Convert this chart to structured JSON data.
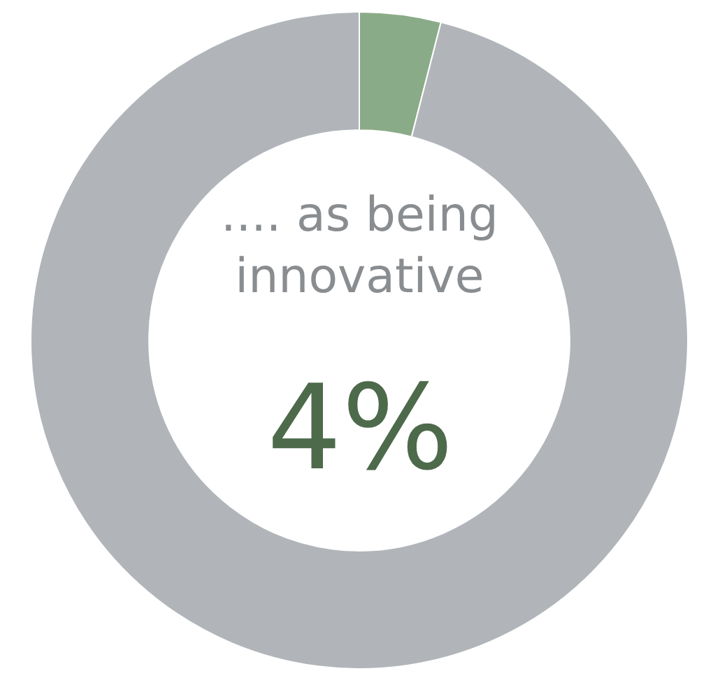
{
  "chart_data": {
    "type": "donut",
    "categories": [
      null,
      null
    ],
    "values": [
      4,
      96
    ],
    "colors": [
      "#8aab87",
      "#b1b5b9"
    ],
    "annotations": [
      ".... as being\ninnovative",
      "4%"
    ]
  }
}
